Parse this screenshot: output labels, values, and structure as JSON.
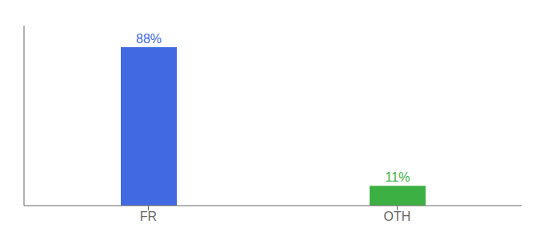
{
  "chart_data": {
    "type": "bar",
    "categories": [
      "FR",
      "OTH"
    ],
    "values": [
      88,
      11
    ],
    "value_labels": [
      "88%",
      "11%"
    ],
    "colors": [
      "#4169e1",
      "#3cb043"
    ],
    "ylim": [
      0,
      100
    ],
    "data_labels": true,
    "tick_labels": "x"
  }
}
